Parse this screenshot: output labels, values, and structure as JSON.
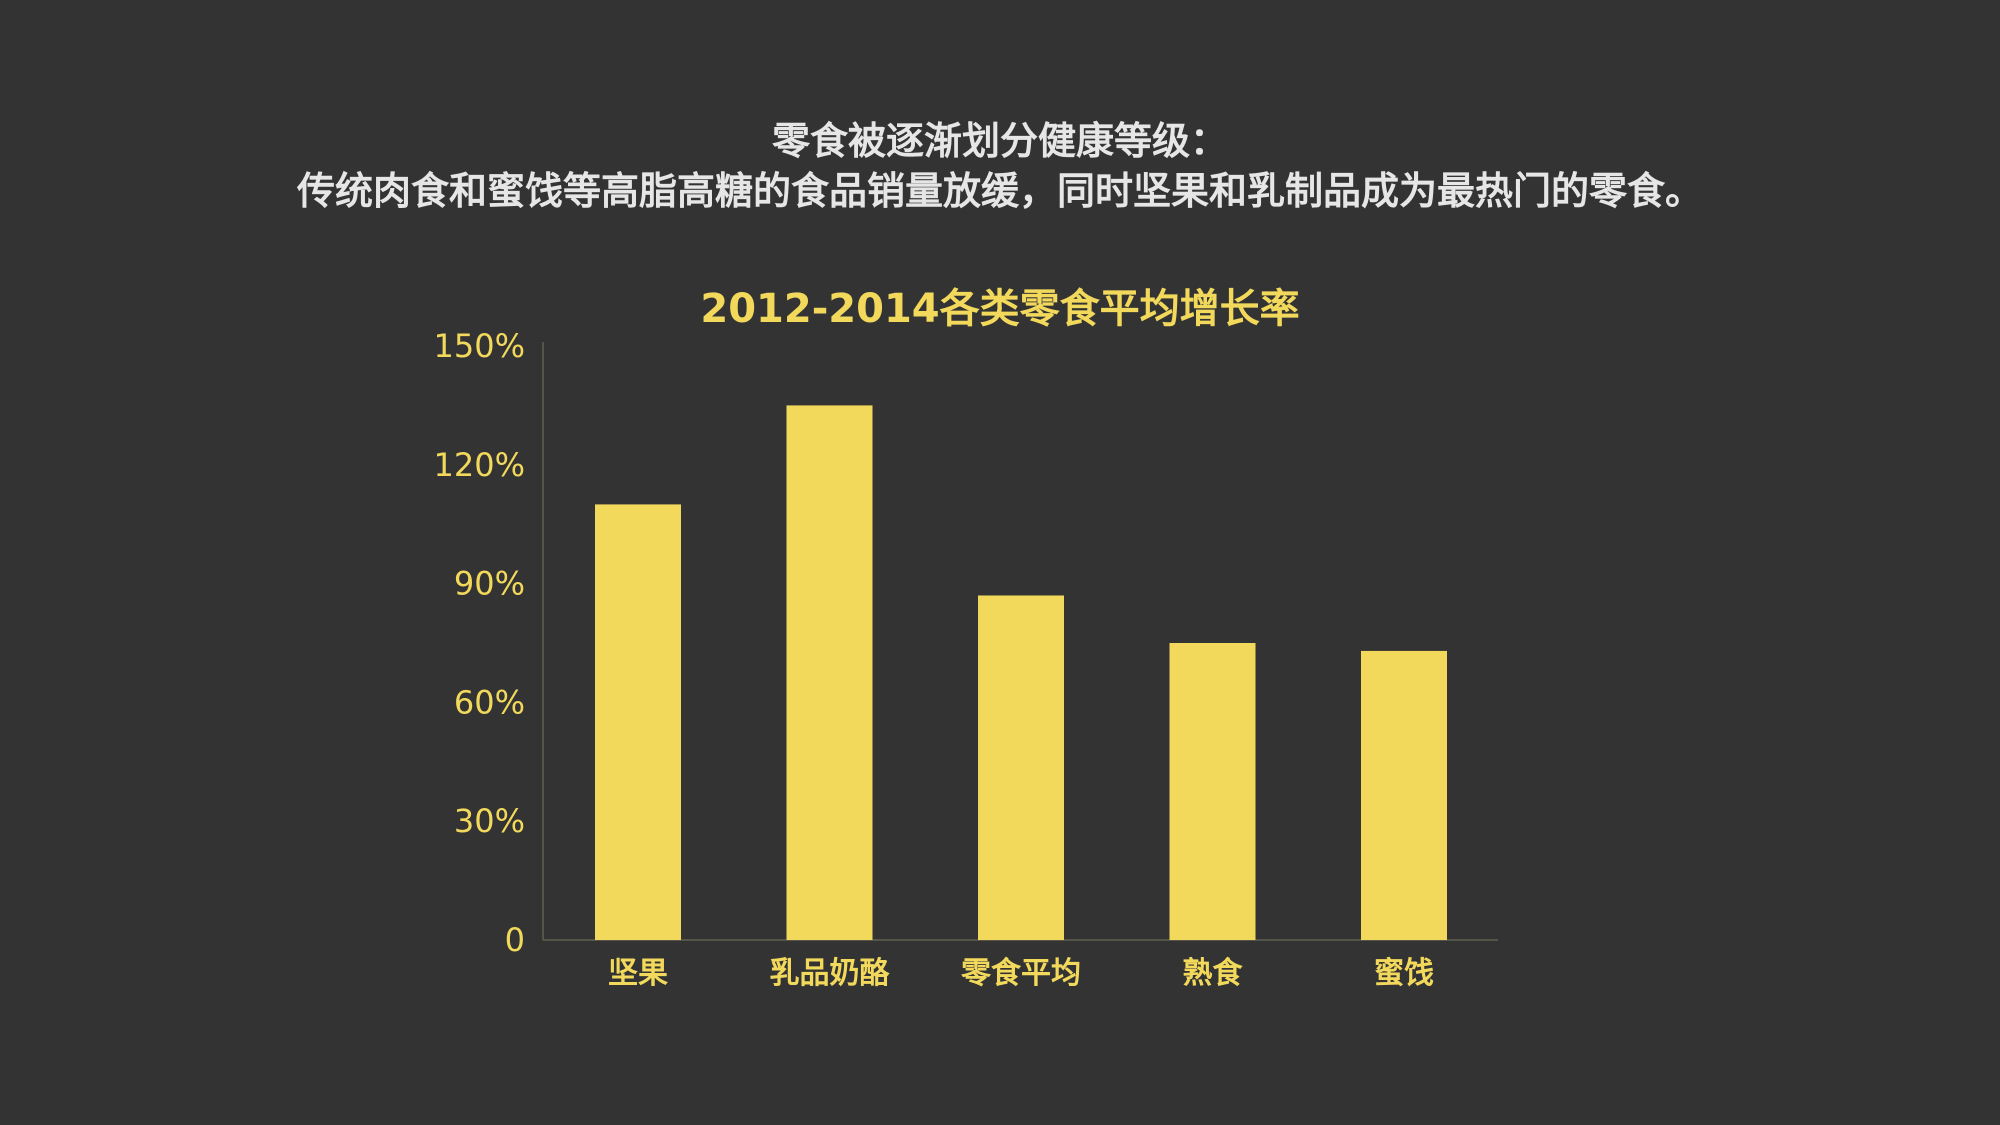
{
  "headline": {
    "line1": "零食被逐渐划分健康等级：",
    "line2": "传统肉食和蜜饯等高脂高糖的食品销量放缓，同时坚果和乳制品成为最热门的零食。"
  },
  "colors": {
    "background": "#333333",
    "bar": "#f2d95c",
    "text": "#e6e6e6",
    "axis": "#555548"
  },
  "chart_data": {
    "type": "bar",
    "title": "2012-2014各类零食平均增长率",
    "categories": [
      "坚果",
      "乳品奶酪",
      "零食平均",
      "熟食",
      "蜜饯"
    ],
    "values": [
      110,
      135,
      87,
      75,
      73
    ],
    "unit": "%",
    "ylim": [
      0,
      150
    ],
    "yticks": [
      0,
      30,
      60,
      90,
      120,
      150
    ],
    "ytick_labels": [
      "0",
      "30%",
      "60%",
      "90%",
      "120%",
      "150%"
    ],
    "xlabel": "",
    "ylabel": "",
    "grid": false,
    "legend": "none"
  }
}
